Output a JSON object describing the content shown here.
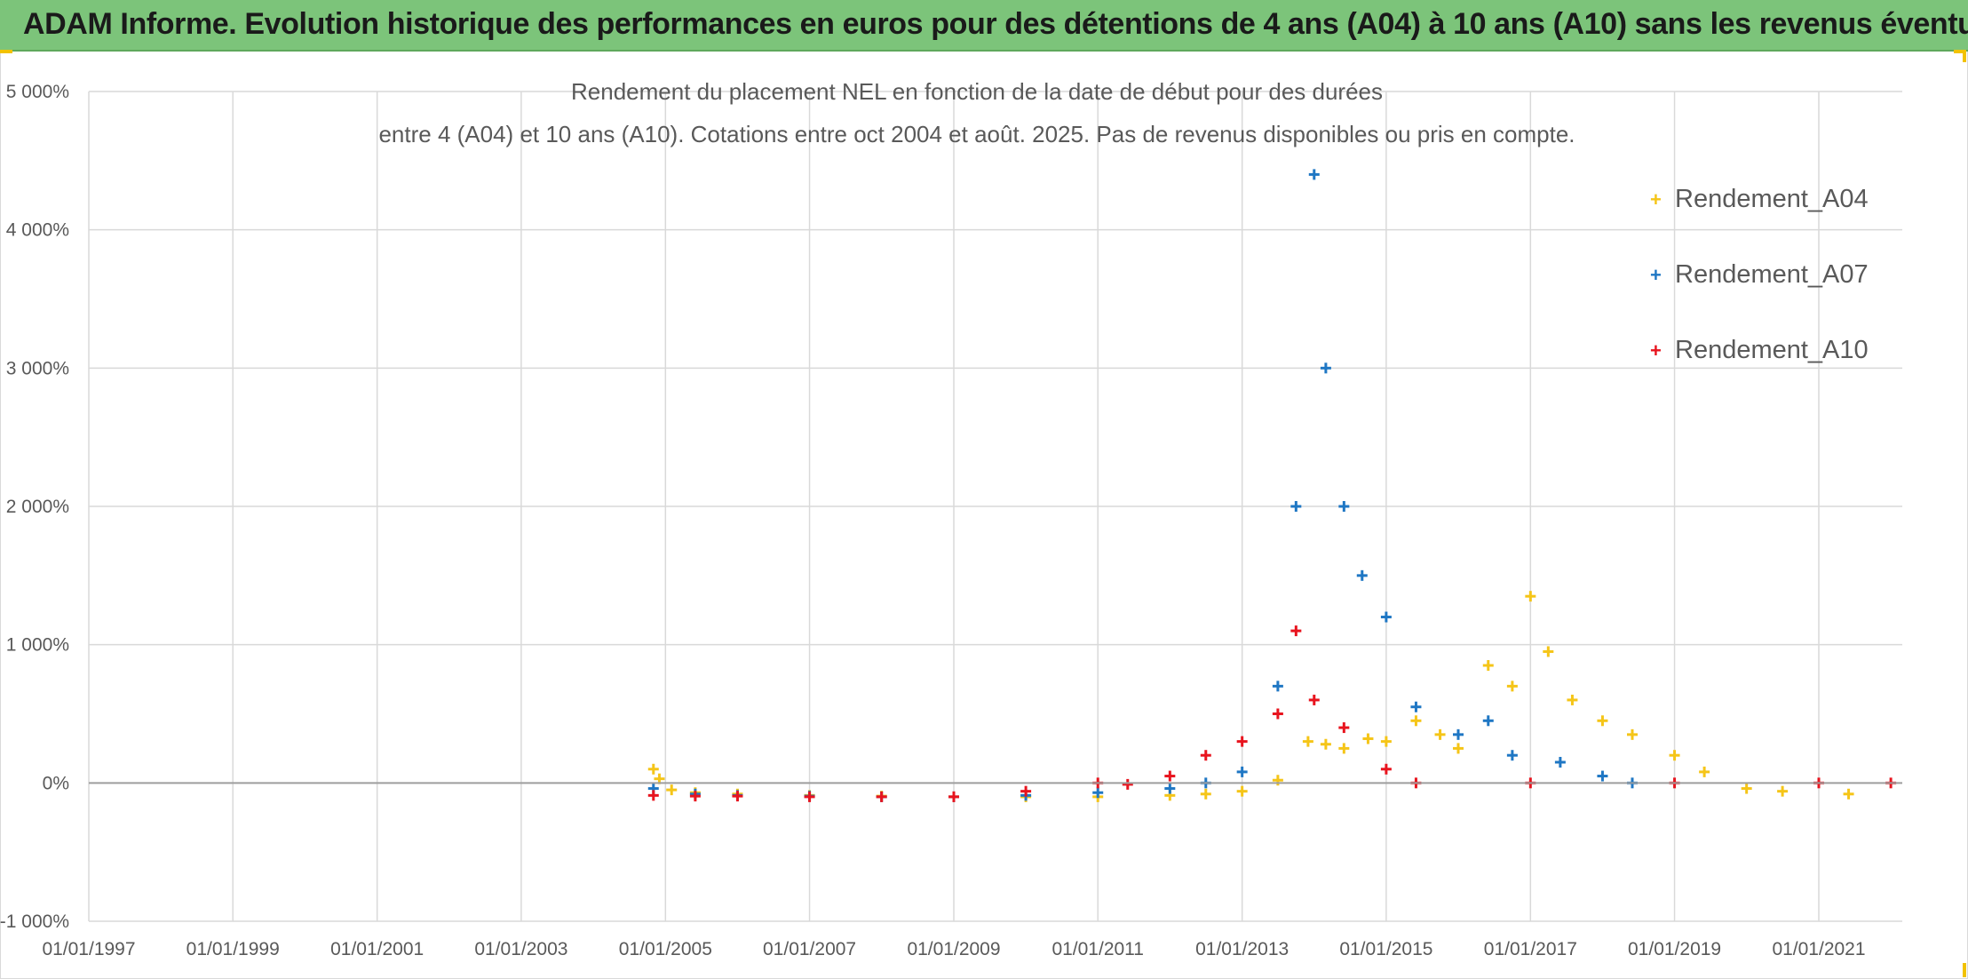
{
  "header": {
    "title": "ADAM Informe. Evolution historique des performances en euros pour des détentions de 4 ans (A04) à 10 ans (A10) sans les revenus éventuels"
  },
  "colors": {
    "header_bg": "#7cc47a",
    "accent_corner": "#f2c200",
    "a04": "#f5c518",
    "a07": "#1f77c4",
    "a10": "#e8141e",
    "grid": "#d9d9d9"
  },
  "chart_data": {
    "type": "scatter",
    "marker": "plus",
    "title": "Rendement du placement NEL en fonction de la date de début pour des durées",
    "subtitle": "entre 4 (A04) et 10 ans (A10). Cotations entre oct 2004 et août. 2025. Pas de revenus disponibles ou pris en compte.",
    "xlabel": "",
    "ylabel": "",
    "grid": true,
    "legend_position": "top-right",
    "x_range": [
      "1997-01-01",
      "2022-02-28"
    ],
    "y_range": [
      -1000,
      5000
    ],
    "x_ticks": [
      "01/01/1997",
      "01/01/1999",
      "01/01/2001",
      "01/01/2003",
      "01/01/2005",
      "01/01/2007",
      "01/01/2009",
      "01/01/2011",
      "01/01/2013",
      "01/01/2015",
      "01/01/2017",
      "01/01/2019",
      "01/01/2021"
    ],
    "y_ticks": [
      {
        "value": -1000,
        "label": "-1 000%"
      },
      {
        "value": 0,
        "label": "0%"
      },
      {
        "value": 1000,
        "label": "1 000%"
      },
      {
        "value": 2000,
        "label": "2 000%"
      },
      {
        "value": 3000,
        "label": "3 000%"
      },
      {
        "value": 4000,
        "label": "4 000%"
      },
      {
        "value": 5000,
        "label": "5 000%"
      }
    ],
    "series": [
      {
        "name": "Rendement_A04",
        "color": "#f5c518",
        "points": [
          [
            "2004-11-01",
            100
          ],
          [
            "2004-12-01",
            30
          ],
          [
            "2005-02-01",
            -50
          ],
          [
            "2005-06-01",
            -70
          ],
          [
            "2006-01-01",
            -80
          ],
          [
            "2007-01-01",
            -90
          ],
          [
            "2008-01-01",
            -95
          ],
          [
            "2009-01-01",
            -100
          ],
          [
            "2010-01-01",
            -100
          ],
          [
            "2011-01-01",
            -100
          ],
          [
            "2012-01-01",
            -90
          ],
          [
            "2012-07-01",
            -80
          ],
          [
            "2013-01-01",
            -60
          ],
          [
            "2013-07-01",
            20
          ],
          [
            "2013-12-01",
            300
          ],
          [
            "2014-03-01",
            280
          ],
          [
            "2014-06-01",
            250
          ],
          [
            "2014-10-01",
            320
          ],
          [
            "2015-01-01",
            300
          ],
          [
            "2015-06-01",
            450
          ],
          [
            "2015-10-01",
            350
          ],
          [
            "2016-01-01",
            250
          ],
          [
            "2016-06-01",
            850
          ],
          [
            "2016-10-01",
            700
          ],
          [
            "2017-01-01",
            1350
          ],
          [
            "2017-04-01",
            950
          ],
          [
            "2017-08-01",
            600
          ],
          [
            "2018-01-01",
            450
          ],
          [
            "2018-06-01",
            350
          ],
          [
            "2019-01-01",
            200
          ],
          [
            "2019-06-01",
            80
          ],
          [
            "2020-01-01",
            -40
          ],
          [
            "2020-07-01",
            -60
          ],
          [
            "2021-06-01",
            -80
          ]
        ]
      },
      {
        "name": "Rendement_A07",
        "color": "#1f77c4",
        "points": [
          [
            "2004-11-01",
            -40
          ],
          [
            "2005-06-01",
            -80
          ],
          [
            "2006-01-01",
            -90
          ],
          [
            "2007-01-01",
            -95
          ],
          [
            "2008-01-01",
            -100
          ],
          [
            "2009-01-01",
            -100
          ],
          [
            "2010-01-01",
            -90
          ],
          [
            "2011-01-01",
            -70
          ],
          [
            "2012-01-01",
            -40
          ],
          [
            "2012-07-01",
            0
          ],
          [
            "2013-01-01",
            80
          ],
          [
            "2013-07-01",
            700
          ],
          [
            "2013-10-01",
            2000
          ],
          [
            "2014-01-01",
            4400
          ],
          [
            "2014-03-01",
            3000
          ],
          [
            "2014-06-01",
            2000
          ],
          [
            "2014-09-01",
            1500
          ],
          [
            "2015-01-01",
            1200
          ],
          [
            "2015-06-01",
            550
          ],
          [
            "2016-01-01",
            350
          ],
          [
            "2016-06-01",
            450
          ],
          [
            "2016-10-01",
            200
          ],
          [
            "2017-06-01",
            150
          ],
          [
            "2018-01-01",
            50
          ],
          [
            "2018-06-01",
            0
          ]
        ]
      },
      {
        "name": "Rendement_A10",
        "color": "#e8141e",
        "points": [
          [
            "2004-11-01",
            -90
          ],
          [
            "2005-06-01",
            -95
          ],
          [
            "2006-01-01",
            -95
          ],
          [
            "2007-01-01",
            -100
          ],
          [
            "2008-01-01",
            -100
          ],
          [
            "2009-01-01",
            -100
          ],
          [
            "2010-01-01",
            -60
          ],
          [
            "2011-01-01",
            0
          ],
          [
            "2011-06-01",
            -10
          ],
          [
            "2012-01-01",
            50
          ],
          [
            "2012-07-01",
            200
          ],
          [
            "2013-01-01",
            300
          ],
          [
            "2013-07-01",
            500
          ],
          [
            "2013-10-01",
            1100
          ],
          [
            "2014-01-01",
            600
          ],
          [
            "2014-06-01",
            400
          ],
          [
            "2015-01-01",
            100
          ],
          [
            "2015-06-01",
            0
          ],
          [
            "2017-01-01",
            0
          ],
          [
            "2019-01-01",
            0
          ],
          [
            "2021-01-01",
            0
          ],
          [
            "2022-01-01",
            0
          ]
        ]
      }
    ]
  }
}
